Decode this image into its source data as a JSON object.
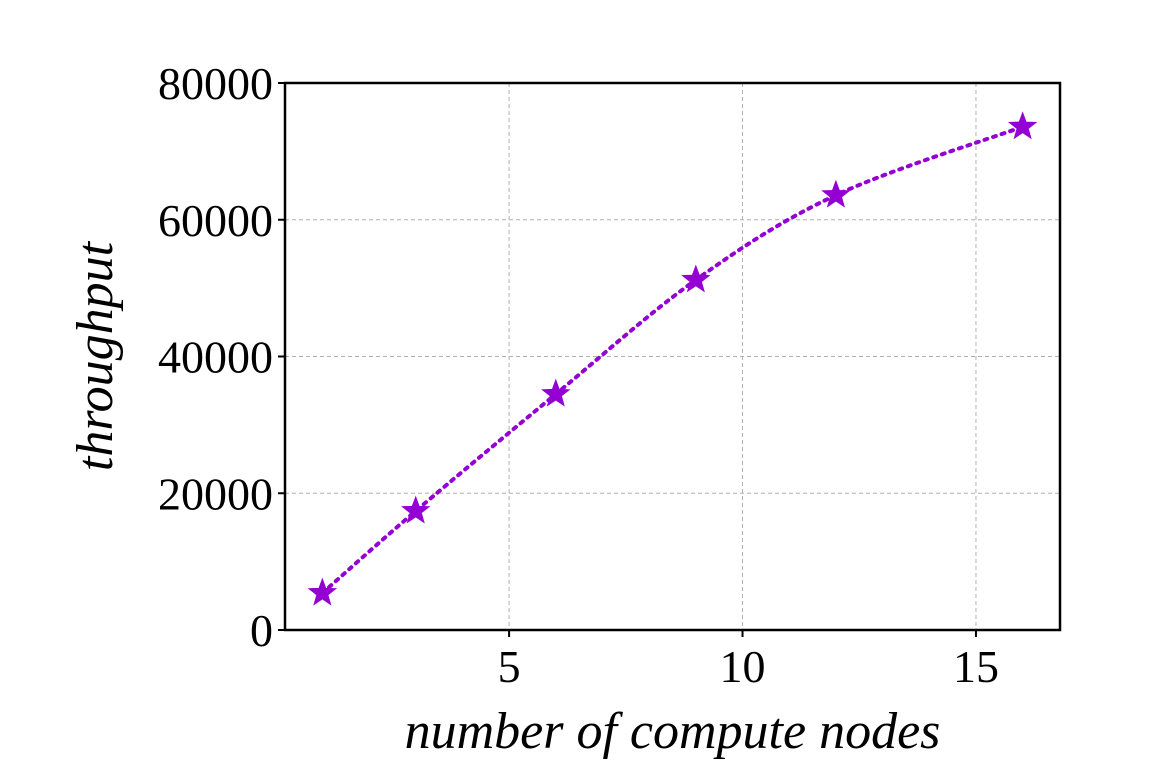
{
  "chart_data": {
    "type": "line",
    "title": "",
    "xlabel": "number of compute nodes",
    "ylabel": "throughput",
    "xlim": [
      0.2,
      16.8
    ],
    "ylim": [
      0,
      80000
    ],
    "x_ticks": [
      5,
      10,
      15
    ],
    "y_ticks": [
      0,
      20000,
      40000,
      60000,
      80000
    ],
    "x_tick_labels": [
      "5",
      "10",
      "15"
    ],
    "y_tick_labels": [
      "0",
      "20000",
      "40000",
      "60000",
      "80000"
    ],
    "grid": true,
    "legend": "none",
    "series": [
      {
        "x": [
          1,
          3,
          6,
          9,
          12,
          16
        ],
        "y": [
          5400,
          17400,
          34500,
          51200,
          63600,
          73600
        ],
        "marker": "star",
        "line_style": "dotted",
        "color": "#9400d3"
      }
    ]
  }
}
